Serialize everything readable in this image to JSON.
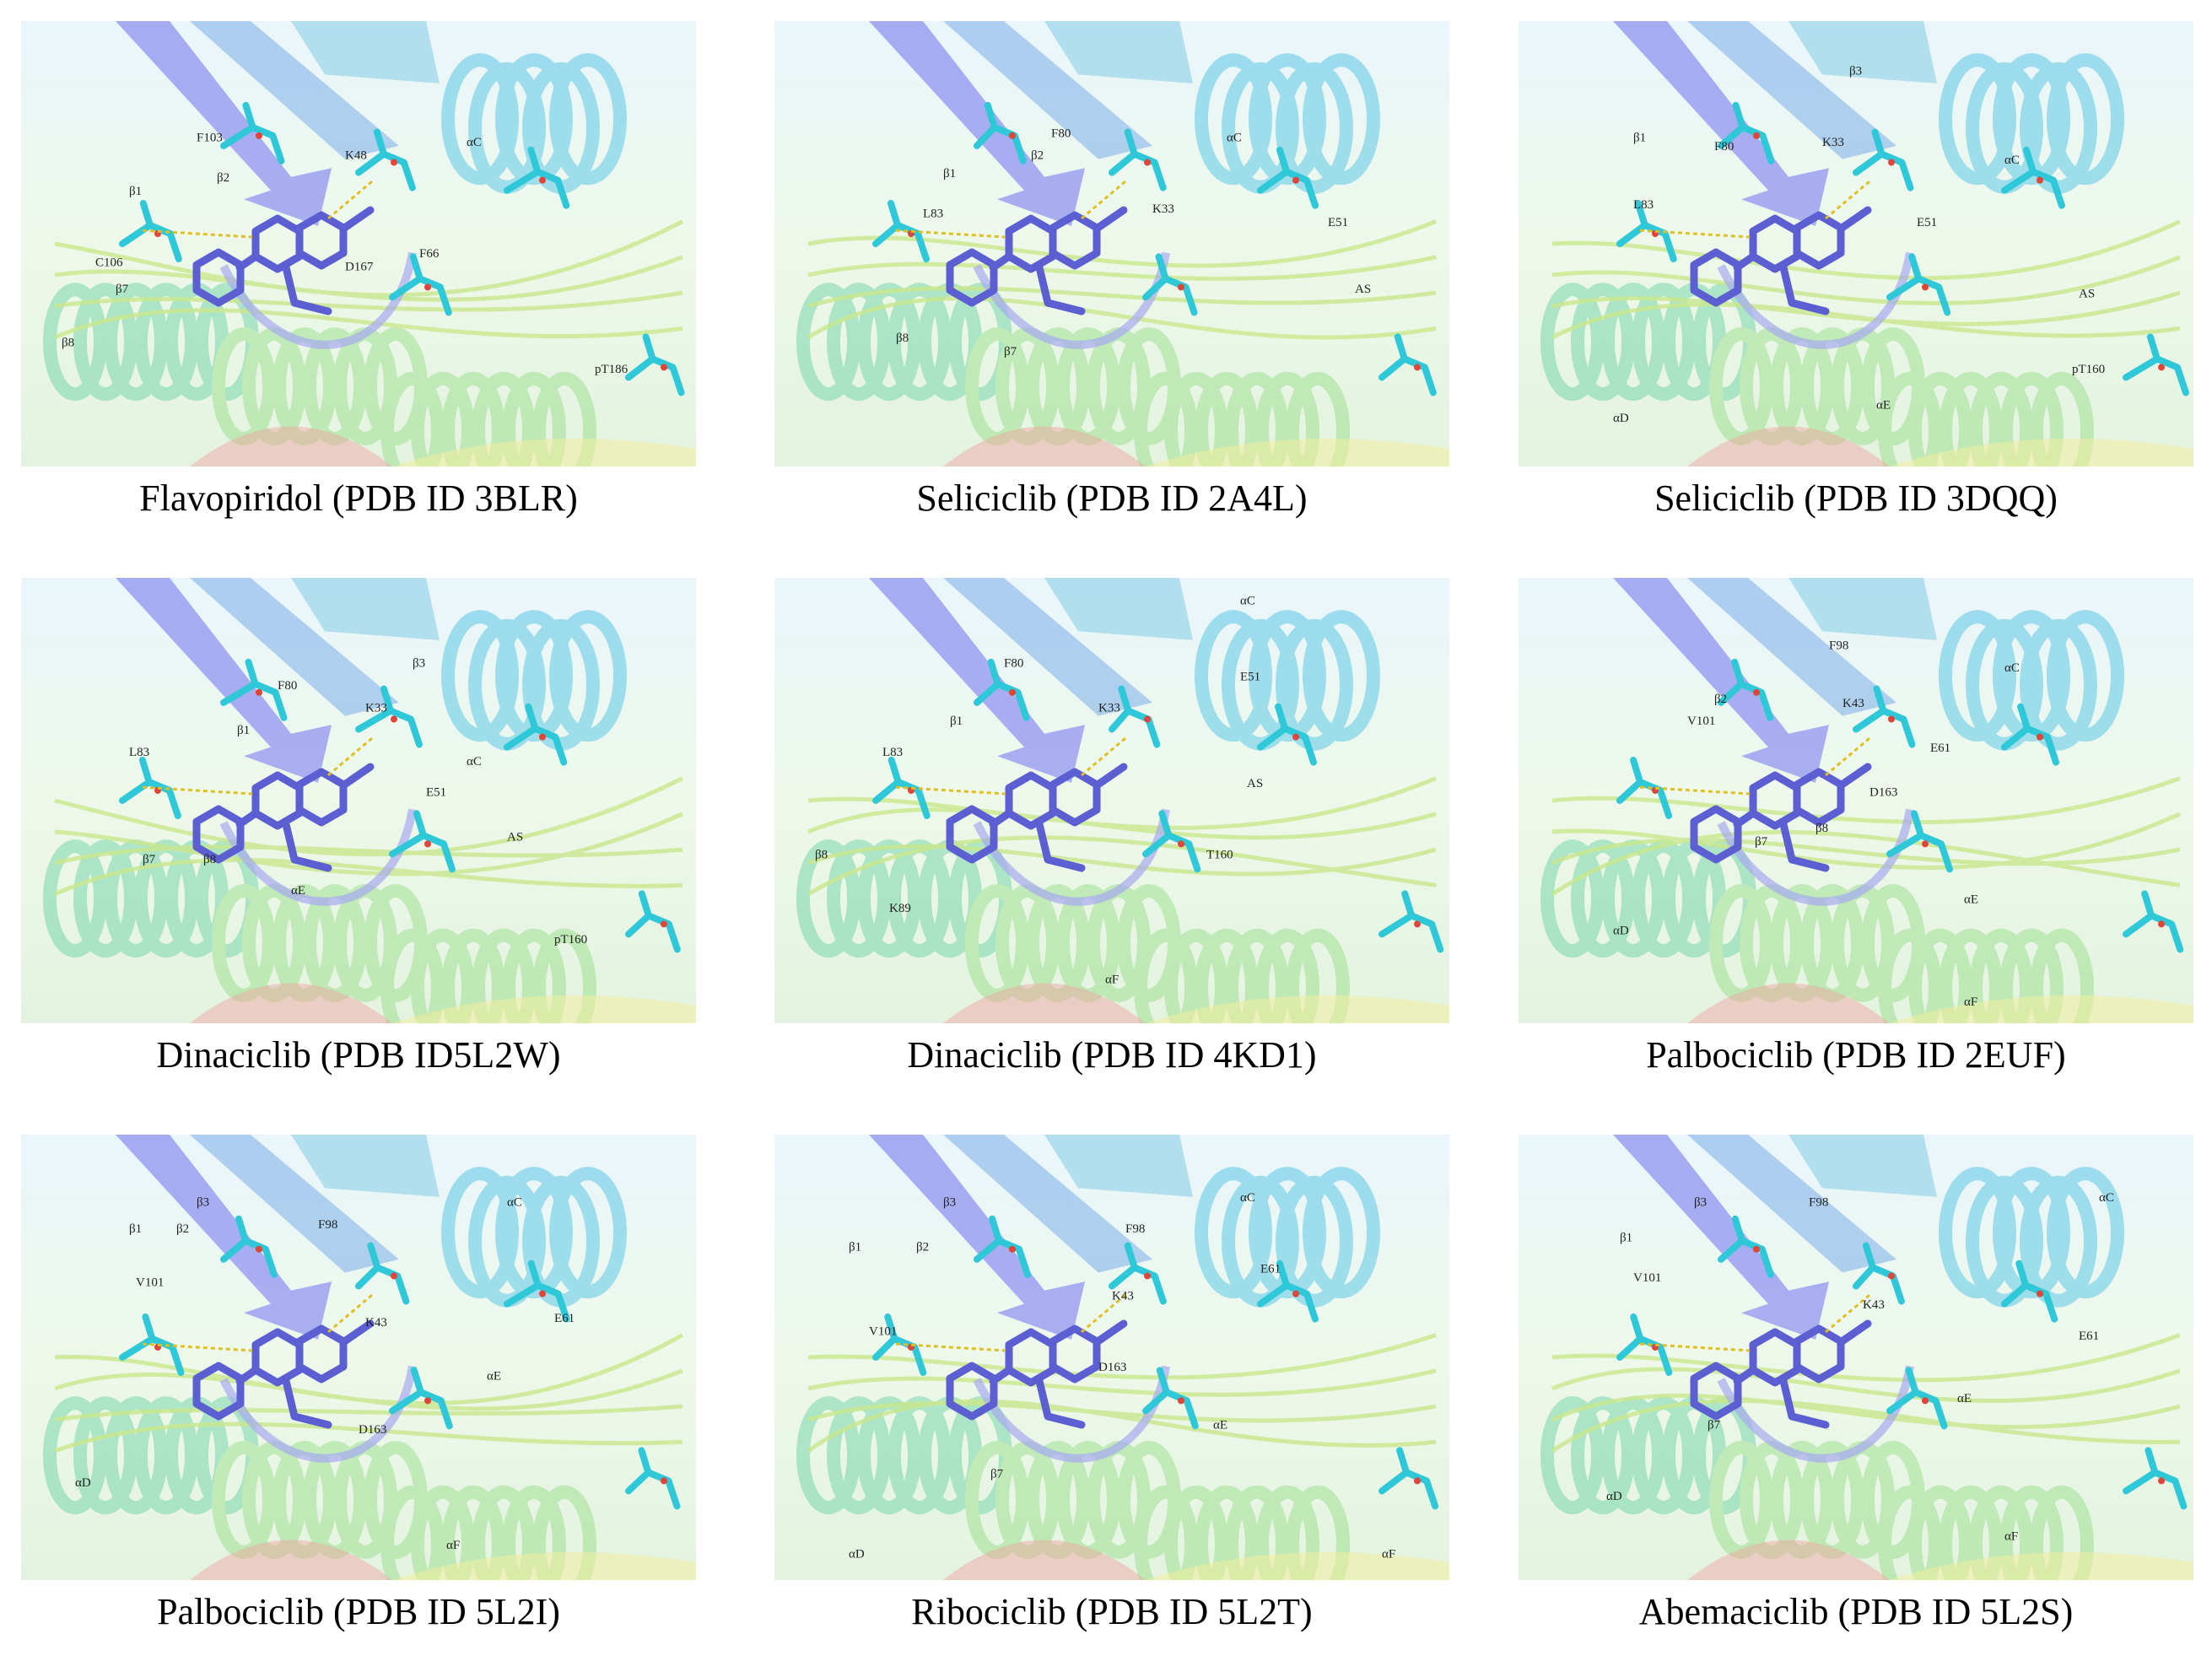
{
  "panels": [
    {
      "caption": "Flavopiridol (PDB ID 3BLR)",
      "labels": [
        "F103",
        "K48",
        "αC",
        "β1",
        "β2",
        "F66",
        "C106",
        "D167",
        "β7",
        "β8",
        "pT186"
      ]
    },
    {
      "caption": "Seliciclib (PDB ID 2A4L)",
      "labels": [
        "β1",
        "β2",
        "F80",
        "αC",
        "L83",
        "K33",
        "E51",
        "AS",
        "β8",
        "β7"
      ]
    },
    {
      "caption": "Seliciclib (PDB ID 3DQQ)",
      "labels": [
        "β3",
        "β1",
        "F80",
        "K33",
        "αC",
        "L83",
        "E51",
        "AS",
        "pT160",
        "αD",
        "αE"
      ]
    },
    {
      "caption": "Dinaciclib (PDB ID5L2W)",
      "labels": [
        "F80",
        "β3",
        "K33",
        "β1",
        "αC",
        "L83",
        "E51",
        "AS",
        "β7",
        "β8",
        "αE",
        "pT160"
      ]
    },
    {
      "caption": "Dinaciclib (PDB ID 4KD1)",
      "labels": [
        "αC",
        "F80",
        "E51",
        "β1",
        "K33",
        "L83",
        "AS",
        "β8",
        "T160",
        "K89",
        "αF"
      ]
    },
    {
      "caption": "Palbociclib (PDB ID 2EUF)",
      "labels": [
        "F98",
        "β2",
        "αC",
        "K43",
        "V101",
        "E61",
        "D163",
        "β7",
        "β8",
        "αD",
        "αE",
        "αF"
      ]
    },
    {
      "caption": "Palbociclib (PDB ID 5L2I)",
      "labels": [
        "β3",
        "αC",
        "β1",
        "β2",
        "F98",
        "V101",
        "K43",
        "E61",
        "αE",
        "D163",
        "αD",
        "αF"
      ]
    },
    {
      "caption": "Ribociclib (PDB ID 5L2T)",
      "labels": [
        "β3",
        "αC",
        "F98",
        "β1",
        "β2",
        "K43",
        "E61",
        "V101",
        "D163",
        "αE",
        "β7",
        "αD",
        "αF"
      ]
    },
    {
      "caption": "Abemaciclib (PDB ID 5L2S)",
      "labels": [
        "β3",
        "F98",
        "αC",
        "β1",
        "V101",
        "K43",
        "E61",
        "αE",
        "β7",
        "αD",
        "αF"
      ]
    }
  ]
}
